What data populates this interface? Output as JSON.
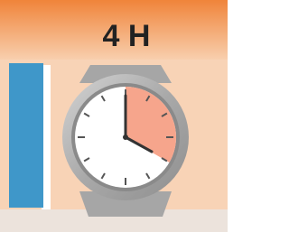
{
  "title": "4 H"
}
